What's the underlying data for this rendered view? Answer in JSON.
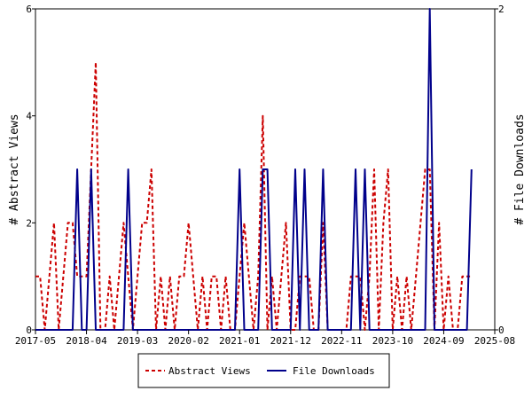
{
  "chart_data": {
    "type": "line",
    "x_start": "2017-05",
    "x_end": "2025-08",
    "xticks": [
      "2017-05",
      "2018-04",
      "2019-03",
      "2020-02",
      "2021-01",
      "2021-12",
      "2022-11",
      "2023-10",
      "2024-09",
      "2025-08"
    ],
    "ylabel_left": "# Abstract Views",
    "ylabel_right": "# File Downloads",
    "ylim_left": [
      0,
      6
    ],
    "yticks_left": [
      "0",
      "2",
      "4",
      "6"
    ],
    "ylim_right": [
      0,
      2
    ],
    "yticks_right": [
      "0",
      "2"
    ],
    "grid": false,
    "legend_position": "bottom",
    "series": [
      {
        "name": "Abstract Views",
        "axis": "left",
        "color": "#cc0000",
        "style": "dashed",
        "points": [
          [
            "2017-05",
            1
          ],
          [
            "2017-06",
            1
          ],
          [
            "2017-07",
            0
          ],
          [
            "2017-08",
            1
          ],
          [
            "2017-09",
            2
          ],
          [
            "2017-10",
            0
          ],
          [
            "2017-11",
            1
          ],
          [
            "2017-12",
            2
          ],
          [
            "2018-01",
            2
          ],
          [
            "2018-02",
            1
          ],
          [
            "2018-03",
            1
          ],
          [
            "2018-04",
            1
          ],
          [
            "2018-05",
            3
          ],
          [
            "2018-06",
            5
          ],
          [
            "2018-07",
            0
          ],
          [
            "2018-08",
            0
          ],
          [
            "2018-09",
            1
          ],
          [
            "2018-10",
            0
          ],
          [
            "2018-11",
            1
          ],
          [
            "2018-12",
            2
          ],
          [
            "2019-01",
            1
          ],
          [
            "2019-02",
            0
          ],
          [
            "2019-03",
            1
          ],
          [
            "2019-04",
            2
          ],
          [
            "2019-05",
            2
          ],
          [
            "2019-06",
            3
          ],
          [
            "2019-07",
            0
          ],
          [
            "2019-08",
            1
          ],
          [
            "2019-09",
            0
          ],
          [
            "2019-10",
            1
          ],
          [
            "2019-11",
            0
          ],
          [
            "2019-12",
            1
          ],
          [
            "2020-01",
            1
          ],
          [
            "2020-02",
            2
          ],
          [
            "2020-03",
            1
          ],
          [
            "2020-04",
            0
          ],
          [
            "2020-05",
            1
          ],
          [
            "2020-06",
            0
          ],
          [
            "2020-07",
            1
          ],
          [
            "2020-08",
            1
          ],
          [
            "2020-09",
            0
          ],
          [
            "2020-10",
            1
          ],
          [
            "2020-11",
            0
          ],
          [
            "2020-12",
            0
          ],
          [
            "2021-01",
            1
          ],
          [
            "2021-02",
            2
          ],
          [
            "2021-03",
            1
          ],
          [
            "2021-04",
            0
          ],
          [
            "2021-05",
            1
          ],
          [
            "2021-06",
            4
          ],
          [
            "2021-07",
            0
          ],
          [
            "2021-08",
            1
          ],
          [
            "2021-09",
            0
          ],
          [
            "2021-10",
            1
          ],
          [
            "2021-11",
            2
          ],
          [
            "2021-12",
            0
          ],
          [
            "2022-01",
            0
          ],
          [
            "2022-02",
            1
          ],
          [
            "2022-03",
            1
          ],
          [
            "2022-04",
            1
          ],
          [
            "2022-05",
            0
          ],
          [
            "2022-06",
            0
          ],
          [
            "2022-07",
            2
          ],
          [
            "2022-08",
            0
          ],
          [
            "2022-09",
            0
          ],
          [
            "2022-10",
            0
          ],
          [
            "2022-11",
            0
          ],
          [
            "2022-12",
            0
          ],
          [
            "2023-01",
            1
          ],
          [
            "2023-02",
            1
          ],
          [
            "2023-03",
            1
          ],
          [
            "2023-04",
            0
          ],
          [
            "2023-05",
            1
          ],
          [
            "2023-06",
            3
          ],
          [
            "2023-07",
            0
          ],
          [
            "2023-08",
            2
          ],
          [
            "2023-09",
            3
          ],
          [
            "2023-10",
            0
          ],
          [
            "2023-11",
            1
          ],
          [
            "2023-12",
            0
          ],
          [
            "2024-01",
            1
          ],
          [
            "2024-02",
            0
          ],
          [
            "2024-03",
            1
          ],
          [
            "2024-04",
            2
          ],
          [
            "2024-05",
            3
          ],
          [
            "2024-06",
            3
          ],
          [
            "2024-07",
            0
          ],
          [
            "2024-08",
            2
          ],
          [
            "2024-09",
            0
          ],
          [
            "2024-10",
            1
          ],
          [
            "2024-11",
            0
          ],
          [
            "2024-12",
            0
          ],
          [
            "2025-01",
            1
          ],
          [
            "2025-02",
            1
          ],
          [
            "2025-03",
            1
          ]
        ]
      },
      {
        "name": "File Downloads",
        "axis": "right",
        "color": "#00008b",
        "style": "solid",
        "points": [
          [
            "2017-05",
            0
          ],
          [
            "2017-06",
            0
          ],
          [
            "2017-07",
            0
          ],
          [
            "2017-08",
            0
          ],
          [
            "2017-09",
            0
          ],
          [
            "2017-10",
            0
          ],
          [
            "2017-11",
            0
          ],
          [
            "2017-12",
            0
          ],
          [
            "2018-01",
            0
          ],
          [
            "2018-02",
            1
          ],
          [
            "2018-03",
            0
          ],
          [
            "2018-04",
            0
          ],
          [
            "2018-05",
            1
          ],
          [
            "2018-06",
            0
          ],
          [
            "2018-07",
            0
          ],
          [
            "2018-08",
            0
          ],
          [
            "2018-09",
            0
          ],
          [
            "2018-10",
            0
          ],
          [
            "2018-11",
            0
          ],
          [
            "2018-12",
            0
          ],
          [
            "2019-01",
            1
          ],
          [
            "2019-02",
            0
          ],
          [
            "2019-03",
            0
          ],
          [
            "2019-04",
            0
          ],
          [
            "2019-05",
            0
          ],
          [
            "2019-06",
            0
          ],
          [
            "2019-07",
            0
          ],
          [
            "2019-08",
            0
          ],
          [
            "2019-09",
            0
          ],
          [
            "2019-10",
            0
          ],
          [
            "2019-11",
            0
          ],
          [
            "2019-12",
            0
          ],
          [
            "2020-01",
            0
          ],
          [
            "2020-02",
            0
          ],
          [
            "2020-03",
            0
          ],
          [
            "2020-04",
            0
          ],
          [
            "2020-05",
            0
          ],
          [
            "2020-06",
            0
          ],
          [
            "2020-07",
            0
          ],
          [
            "2020-08",
            0
          ],
          [
            "2020-09",
            0
          ],
          [
            "2020-10",
            0
          ],
          [
            "2020-11",
            0
          ],
          [
            "2020-12",
            0
          ],
          [
            "2021-01",
            1
          ],
          [
            "2021-02",
            0
          ],
          [
            "2021-03",
            0
          ],
          [
            "2021-04",
            0
          ],
          [
            "2021-05",
            0
          ],
          [
            "2021-06",
            1
          ],
          [
            "2021-07",
            1
          ],
          [
            "2021-08",
            0
          ],
          [
            "2021-09",
            0
          ],
          [
            "2021-10",
            0
          ],
          [
            "2021-11",
            0
          ],
          [
            "2021-12",
            0
          ],
          [
            "2022-01",
            1
          ],
          [
            "2022-02",
            0
          ],
          [
            "2022-03",
            1
          ],
          [
            "2022-04",
            0
          ],
          [
            "2022-05",
            0
          ],
          [
            "2022-06",
            0
          ],
          [
            "2022-07",
            1
          ],
          [
            "2022-08",
            0
          ],
          [
            "2022-09",
            0
          ],
          [
            "2022-10",
            0
          ],
          [
            "2022-11",
            0
          ],
          [
            "2022-12",
            0
          ],
          [
            "2023-01",
            0
          ],
          [
            "2023-02",
            1
          ],
          [
            "2023-03",
            0
          ],
          [
            "2023-04",
            1
          ],
          [
            "2023-05",
            0
          ],
          [
            "2023-06",
            0
          ],
          [
            "2023-07",
            0
          ],
          [
            "2023-08",
            0
          ],
          [
            "2023-09",
            0
          ],
          [
            "2023-10",
            0
          ],
          [
            "2023-11",
            0
          ],
          [
            "2023-12",
            0
          ],
          [
            "2024-01",
            0
          ],
          [
            "2024-02",
            0
          ],
          [
            "2024-03",
            0
          ],
          [
            "2024-04",
            0
          ],
          [
            "2024-05",
            0
          ],
          [
            "2024-06",
            2
          ],
          [
            "2024-07",
            0
          ],
          [
            "2024-08",
            0
          ],
          [
            "2024-09",
            0
          ],
          [
            "2024-10",
            0
          ],
          [
            "2024-11",
            0
          ],
          [
            "2024-12",
            0
          ],
          [
            "2025-01",
            0
          ],
          [
            "2025-02",
            0
          ],
          [
            "2025-03",
            1
          ]
        ]
      }
    ]
  }
}
